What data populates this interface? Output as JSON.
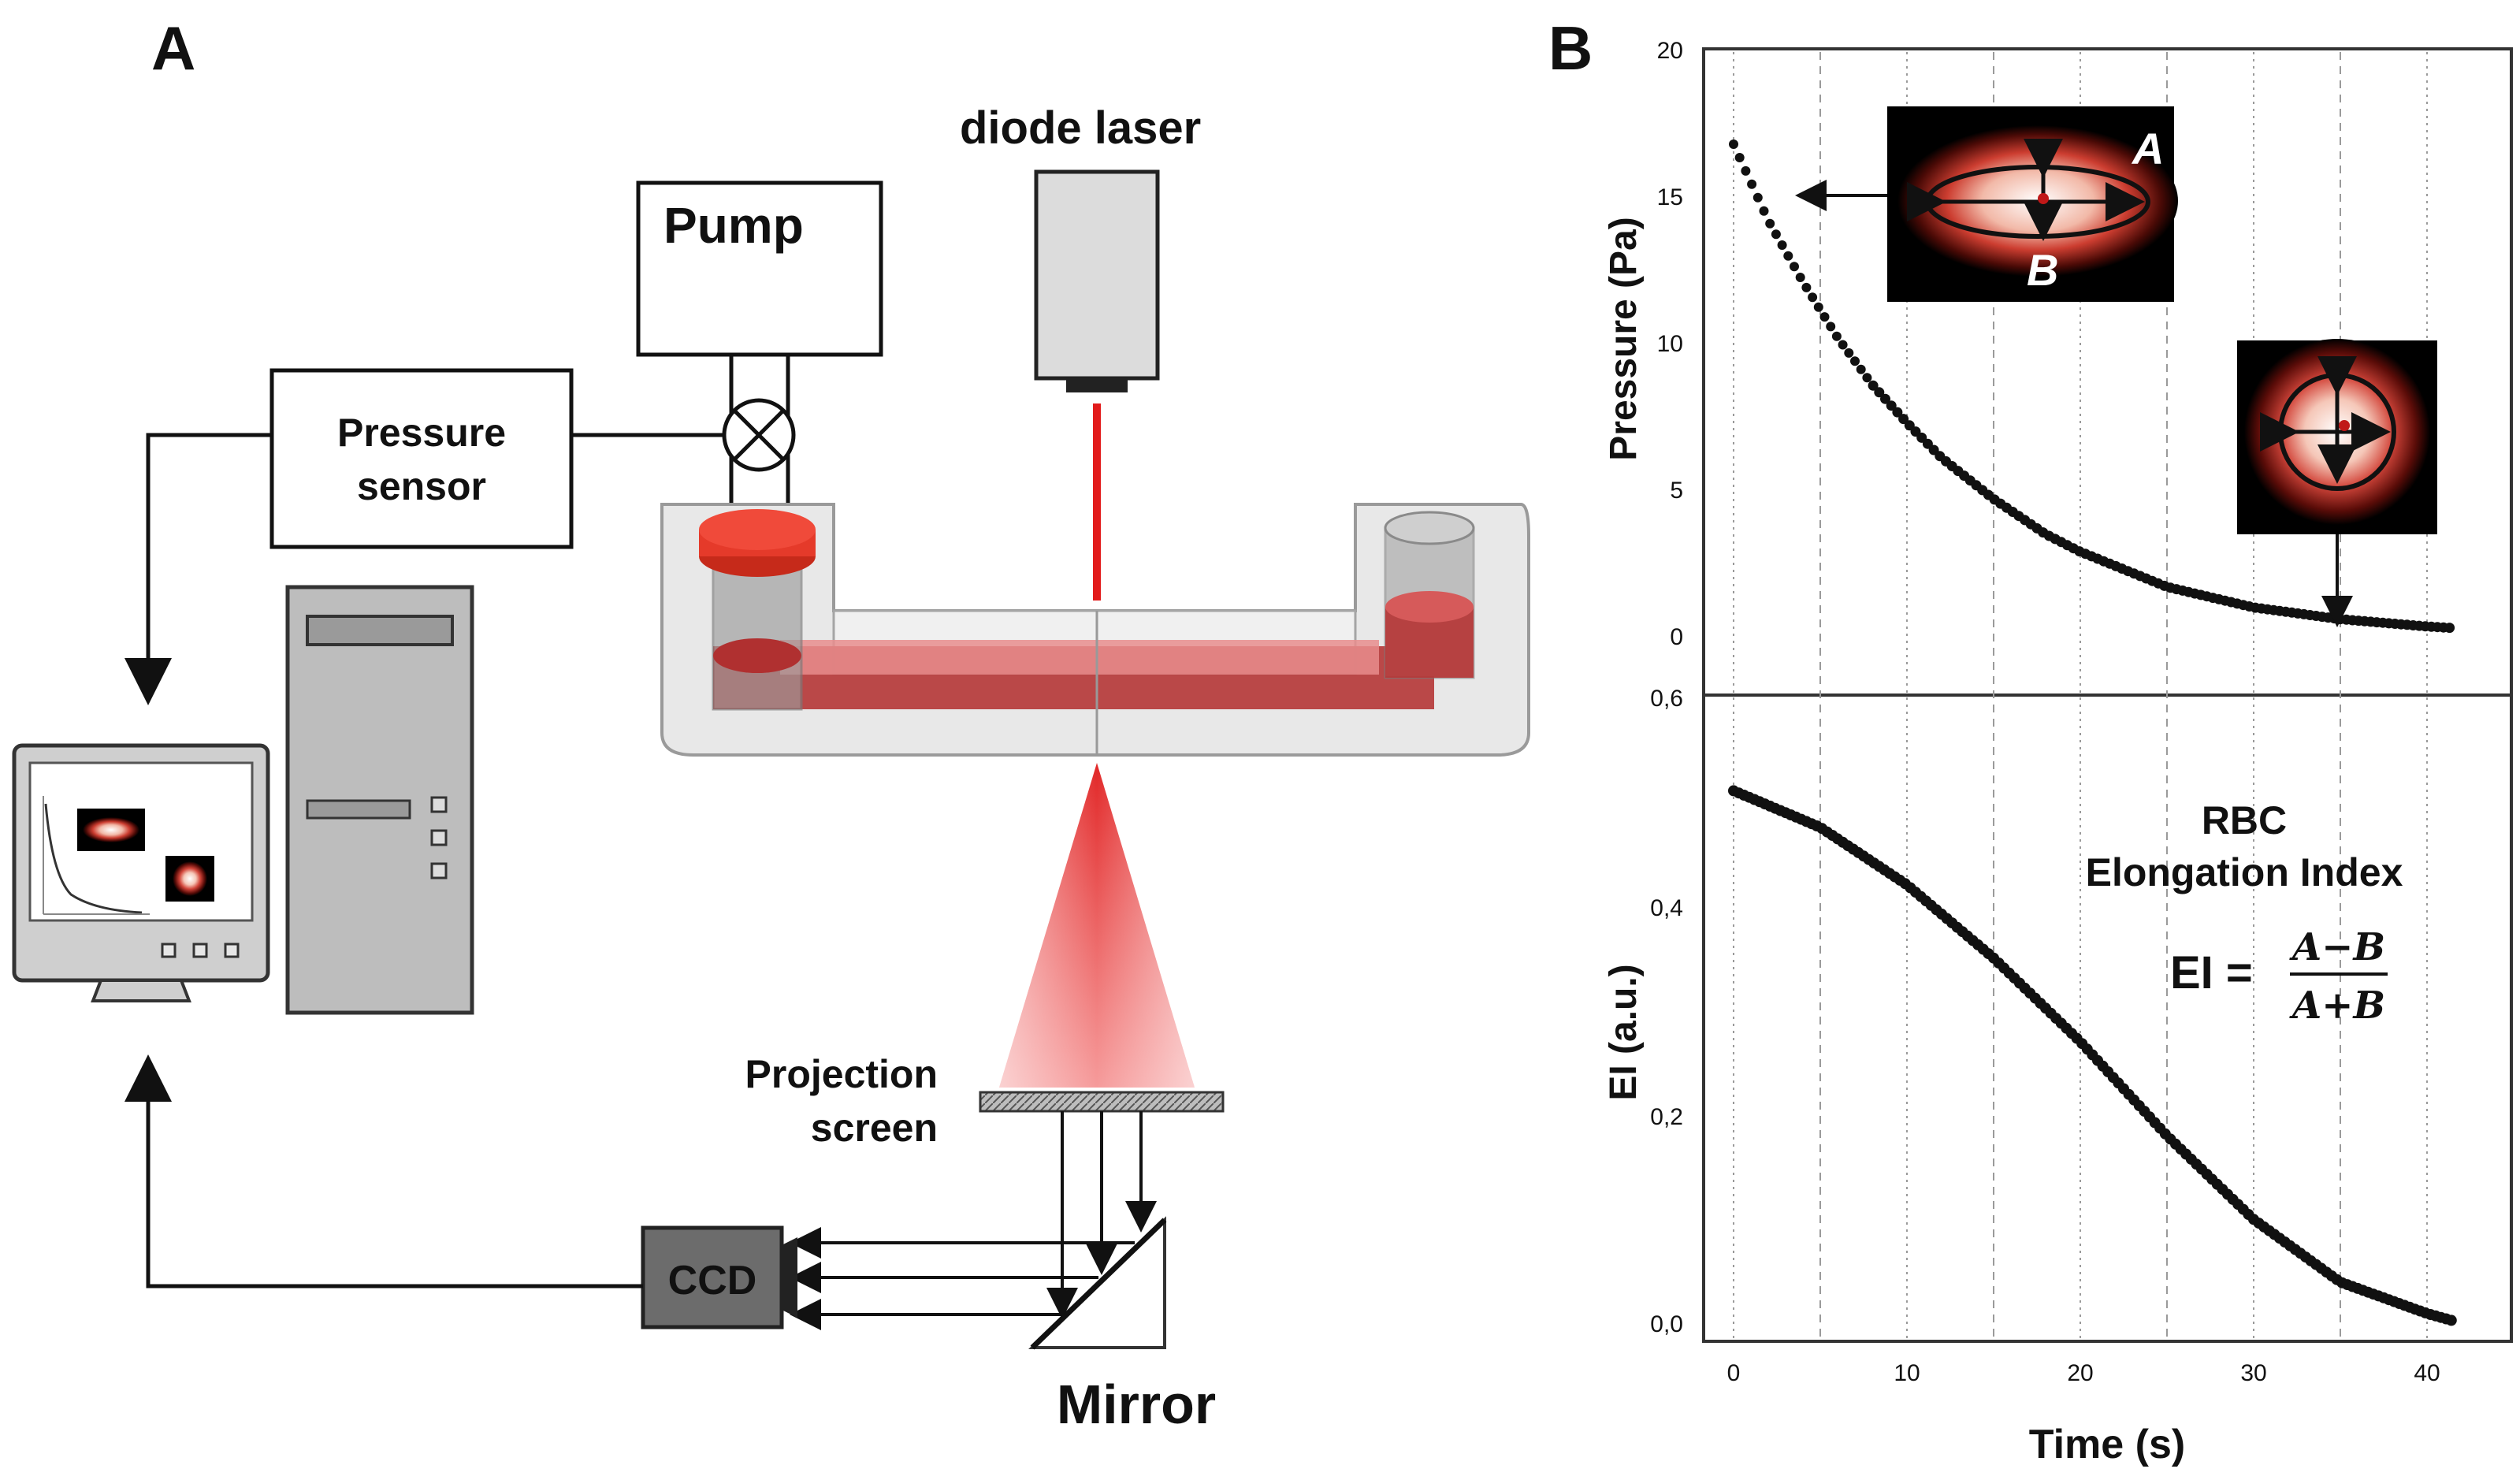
{
  "panel_a": {
    "label": "A",
    "diode_laser_label": "diode laser",
    "pump_label": "Pump",
    "pressure_sensor_label_line1": "Pressure",
    "pressure_sensor_label_line2": "sensor",
    "projection_screen_label_line1": "Projection",
    "projection_screen_label_line2": "screen",
    "ccd_label": "CCD",
    "mirror_label": "Mirror",
    "laser_color": "#e21b1b"
  },
  "panel_b": {
    "label": "B",
    "top_plot": {
      "ylabel": "Pressure (Pa)",
      "yticks": [
        "0",
        "5",
        "10",
        "15",
        "20"
      ],
      "inset_elongated_labels": [
        "A",
        "B"
      ]
    },
    "bottom_plot": {
      "ylabel": "EI (a.u.)",
      "yticks": [
        "0,0",
        "0,2",
        "0,4",
        "0,6"
      ],
      "annotation_line1": "RBC",
      "annotation_line2": "Elongation Index",
      "formula_lhs": "EI =",
      "formula_numerator": "A−B",
      "formula_denominator": "A+B"
    },
    "xticks": [
      "0",
      "10",
      "20",
      "30",
      "40"
    ],
    "xlabel": "Time (s)"
  },
  "chart_data": [
    {
      "type": "scatter",
      "title": "",
      "xlabel": "Time (s)",
      "ylabel": "Pressure (Pa)",
      "xlim": [
        -2,
        45
      ],
      "ylim": [
        -2,
        20
      ],
      "decay": {
        "x": [
          0,
          2,
          4,
          6,
          8,
          10,
          12,
          15,
          18,
          20,
          25,
          30,
          35,
          40,
          41.5
        ],
        "y": [
          16.8,
          14.2,
          12.1,
          10.2,
          8.6,
          7.3,
          6.1,
          4.7,
          3.5,
          2.9,
          1.7,
          1.0,
          0.6,
          0.35,
          0.3
        ]
      }
    },
    {
      "type": "line",
      "title": "",
      "xlabel": "Time (s)",
      "ylabel": "EI (a.u.)",
      "xlim": [
        -2,
        45
      ],
      "ylim": [
        -0.01,
        0.6
      ],
      "series": [
        {
          "name": "EI",
          "x": [
            0,
            5,
            10,
            15,
            20,
            25,
            30,
            35,
            40,
            41.5
          ],
          "y": [
            0.51,
            0.475,
            0.42,
            0.35,
            0.27,
            0.18,
            0.1,
            0.04,
            0.01,
            0.003
          ]
        }
      ]
    }
  ]
}
